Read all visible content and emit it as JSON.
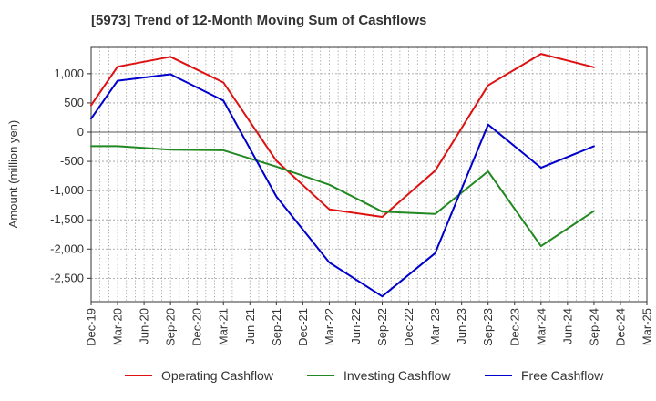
{
  "chart_data": {
    "type": "line",
    "title": "[5973]  Trend of 12-Month Moving Sum of Cashflows",
    "ylabel": "Amount (million yen)",
    "xlabel": "",
    "ylim": [
      -2900,
      1450
    ],
    "y_ticks": [
      1000,
      500,
      0,
      -500,
      -1000,
      -1500,
      -2000,
      -2500
    ],
    "y_tick_labels": [
      "1,000",
      "500",
      "0",
      "-500",
      "-1,000",
      "-1,500",
      "-2,000",
      "-2,500"
    ],
    "categories": [
      "Dec-19",
      "Mar-20",
      "Jun-20",
      "Sep-20",
      "Dec-20",
      "Mar-21",
      "Jun-21",
      "Sep-21",
      "Dec-21",
      "Mar-22",
      "Jun-22",
      "Sep-22",
      "Dec-22",
      "Mar-23",
      "Jun-23",
      "Sep-23",
      "Dec-23",
      "Mar-24",
      "Jun-24",
      "Sep-24",
      "Dec-24",
      "Mar-25"
    ],
    "grid": true,
    "legend_position": "bottom",
    "series": [
      {
        "name": "Operating Cashflow",
        "color": "#dd1111",
        "values": [
          460,
          1120,
          null,
          1290,
          null,
          850,
          null,
          -490,
          null,
          -1320,
          null,
          -1450,
          null,
          -660,
          null,
          800,
          null,
          1340,
          null,
          1110,
          null,
          null
        ]
      },
      {
        "name": "Investing Cashflow",
        "color": "#228822",
        "values": [
          -240,
          -240,
          null,
          -300,
          null,
          -310,
          null,
          -590,
          null,
          -900,
          null,
          -1360,
          null,
          -1400,
          null,
          -670,
          null,
          -1950,
          null,
          -1350,
          null,
          null
        ]
      },
      {
        "name": "Free Cashflow",
        "color": "#0000cc",
        "values": [
          230,
          880,
          null,
          990,
          null,
          540,
          null,
          -1100,
          null,
          -2230,
          null,
          -2810,
          null,
          -2070,
          null,
          130,
          null,
          -610,
          null,
          -240,
          null,
          null
        ]
      }
    ]
  }
}
